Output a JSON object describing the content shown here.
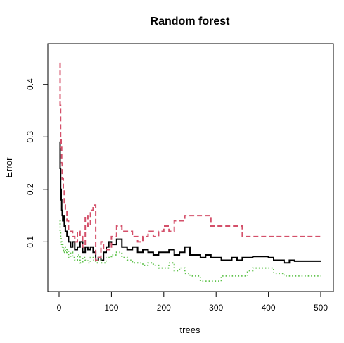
{
  "chart_data": {
    "type": "line",
    "title": "Random forest",
    "xlabel": "trees",
    "ylabel": "Error",
    "xlim": [
      0,
      500
    ],
    "ylim": [
      0.02,
      0.46
    ],
    "xticks": [
      0,
      100,
      200,
      300,
      400,
      500
    ],
    "yticks": [
      0.1,
      0.2,
      0.3,
      0.4
    ],
    "grid": false,
    "legend": "none",
    "series": [
      {
        "color": "#000000",
        "style": "solid",
        "x": [
          1,
          2,
          3,
          4,
          5,
          6,
          7,
          8,
          10,
          12,
          15,
          18,
          22,
          26,
          30,
          35,
          40,
          45,
          50,
          55,
          60,
          65,
          70,
          75,
          80,
          85,
          90,
          95,
          100,
          110,
          120,
          130,
          140,
          150,
          160,
          170,
          180,
          190,
          200,
          210,
          220,
          230,
          240,
          250,
          260,
          270,
          280,
          290,
          300,
          310,
          320,
          330,
          340,
          350,
          360,
          370,
          380,
          390,
          400,
          410,
          420,
          430,
          440,
          450,
          460,
          470,
          480,
          490,
          500
        ],
        "values": [
          0.29,
          0.24,
          0.2,
          0.18,
          0.16,
          0.15,
          0.14,
          0.15,
          0.13,
          0.12,
          0.11,
          0.1,
          0.09,
          0.1,
          0.085,
          0.09,
          0.1,
          0.08,
          0.09,
          0.085,
          0.09,
          0.08,
          0.065,
          0.07,
          0.065,
          0.08,
          0.09,
          0.1,
          0.095,
          0.105,
          0.09,
          0.085,
          0.09,
          0.08,
          0.085,
          0.08,
          0.075,
          0.08,
          0.08,
          0.085,
          0.075,
          0.08,
          0.09,
          0.075,
          0.075,
          0.07,
          0.075,
          0.07,
          0.07,
          0.065,
          0.065,
          0.07,
          0.065,
          0.07,
          0.07,
          0.072,
          0.072,
          0.072,
          0.07,
          0.065,
          0.065,
          0.06,
          0.065,
          0.063,
          0.063,
          0.063,
          0.063,
          0.063,
          0.063
        ]
      },
      {
        "color": "#d4506a",
        "style": "dashed",
        "x": [
          1,
          2,
          3,
          4,
          5,
          6,
          8,
          10,
          12,
          15,
          18,
          22,
          26,
          30,
          35,
          40,
          45,
          50,
          55,
          60,
          65,
          70,
          75,
          80,
          85,
          90,
          100,
          110,
          120,
          130,
          140,
          150,
          160,
          170,
          180,
          190,
          200,
          210,
          220,
          230,
          240,
          250,
          260,
          270,
          280,
          290,
          300,
          310,
          320,
          330,
          340,
          350,
          360,
          370,
          380,
          390,
          400,
          410,
          420,
          430,
          440,
          450,
          460,
          470,
          480,
          490,
          500
        ],
        "values": [
          0.44,
          0.36,
          0.3,
          0.28,
          0.25,
          0.22,
          0.2,
          0.17,
          0.16,
          0.14,
          0.12,
          0.12,
          0.11,
          0.1,
          0.12,
          0.11,
          0.09,
          0.15,
          0.13,
          0.16,
          0.17,
          0.065,
          0.07,
          0.1,
          0.085,
          0.085,
          0.11,
          0.13,
          0.12,
          0.12,
          0.11,
          0.1,
          0.11,
          0.12,
          0.11,
          0.12,
          0.13,
          0.12,
          0.14,
          0.14,
          0.15,
          0.15,
          0.15,
          0.15,
          0.15,
          0.13,
          0.13,
          0.13,
          0.13,
          0.13,
          0.13,
          0.11,
          0.11,
          0.11,
          0.11,
          0.11,
          0.11,
          0.11,
          0.11,
          0.11,
          0.11,
          0.11,
          0.11,
          0.11,
          0.11,
          0.11,
          0.11
        ]
      },
      {
        "color": "#5ec24a",
        "style": "dotted",
        "x": [
          1,
          2,
          3,
          4,
          5,
          6,
          8,
          10,
          12,
          15,
          18,
          22,
          26,
          30,
          35,
          40,
          45,
          50,
          55,
          60,
          65,
          70,
          75,
          80,
          90,
          100,
          110,
          120,
          130,
          140,
          150,
          160,
          170,
          180,
          190,
          200,
          210,
          220,
          230,
          240,
          250,
          260,
          270,
          280,
          290,
          300,
          310,
          320,
          330,
          340,
          350,
          360,
          370,
          380,
          390,
          400,
          410,
          420,
          430,
          440,
          450,
          460,
          470,
          480,
          490,
          500
        ],
        "values": [
          0.14,
          0.12,
          0.11,
          0.1,
          0.09,
          0.095,
          0.08,
          0.09,
          0.08,
          0.085,
          0.07,
          0.08,
          0.07,
          0.065,
          0.075,
          0.06,
          0.07,
          0.065,
          0.06,
          0.07,
          0.065,
          0.06,
          0.065,
          0.06,
          0.07,
          0.075,
          0.08,
          0.07,
          0.065,
          0.06,
          0.06,
          0.055,
          0.06,
          0.055,
          0.05,
          0.05,
          0.06,
          0.045,
          0.05,
          0.04,
          0.035,
          0.035,
          0.025,
          0.025,
          0.025,
          0.025,
          0.035,
          0.035,
          0.035,
          0.035,
          0.035,
          0.045,
          0.05,
          0.05,
          0.05,
          0.05,
          0.04,
          0.04,
          0.035,
          0.035,
          0.035,
          0.035,
          0.035,
          0.035,
          0.035,
          0.035
        ]
      }
    ]
  }
}
